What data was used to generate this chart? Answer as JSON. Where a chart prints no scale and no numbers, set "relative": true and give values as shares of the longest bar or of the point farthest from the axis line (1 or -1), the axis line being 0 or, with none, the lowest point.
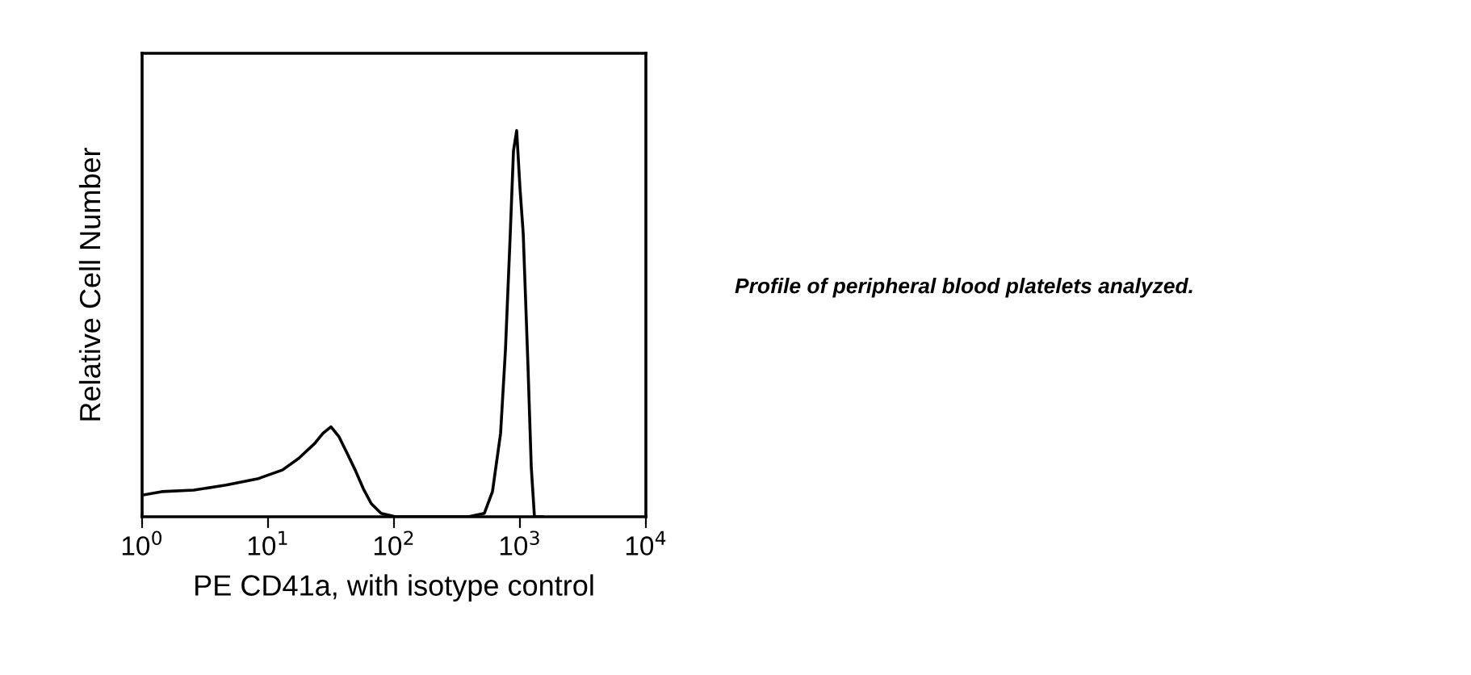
{
  "chart_data": {
    "type": "line",
    "relative": true,
    "log": "x",
    "xlabel": "PE CD41a, with isotype control",
    "ylabel": "Relative Cell Number",
    "xlim": [
      1,
      10000
    ],
    "xticks": [
      {
        "value": 1,
        "label": "10$^{0}$"
      },
      {
        "value": 10,
        "label": "10$^{1}$"
      },
      {
        "value": 100,
        "label": "10$^{2}$"
      },
      {
        "value": 1000,
        "label": "10$^{3}$"
      },
      {
        "value": 10000,
        "label": "10$^{4}$"
      }
    ],
    "tick_labels": "x",
    "grid": false,
    "legend": false,
    "series": [
      {
        "color": "#000000",
        "x": [
          1,
          1.43,
          2.57,
          4.64,
          8.4,
          13,
          17.5,
          23.5,
          27.3,
          31.6,
          36.6,
          42.5,
          49.2,
          57,
          66,
          79,
          103,
          389,
          522,
          605,
          702,
          767,
          838,
          889,
          942,
          1000,
          1062,
          1159,
          1230,
          1304,
          1500
        ],
        "values": [
          0.056,
          0.065,
          0.069,
          0.082,
          0.099,
          0.121,
          0.151,
          0.19,
          0.216,
          0.233,
          0.207,
          0.164,
          0.121,
          0.073,
          0.034,
          0.009,
          0,
          0,
          0.009,
          0.065,
          0.216,
          0.431,
          0.733,
          0.948,
          1.0,
          0.853,
          0.733,
          0.388,
          0.129,
          0,
          0
        ]
      }
    ],
    "annotations": [
      "Profile of peripheral blood platelets analyzed."
    ]
  }
}
